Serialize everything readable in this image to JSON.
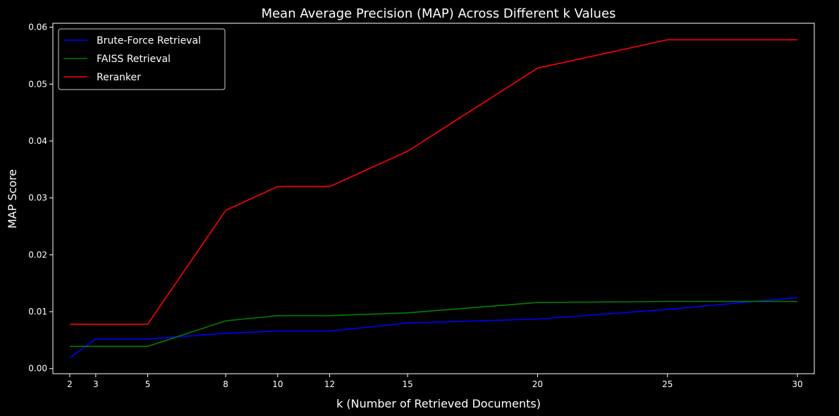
{
  "chart_data": {
    "type": "line",
    "title": "Mean Average Precision (MAP) Across Different k Values",
    "xlabel": "k (Number of Retrieved Documents)",
    "ylabel": "MAP Score",
    "x": [
      2,
      3,
      5,
      8,
      10,
      12,
      15,
      20,
      25,
      30
    ],
    "xticks": [
      "2",
      "3",
      "5",
      "8",
      "10",
      "12",
      "15",
      "20",
      "25",
      "30"
    ],
    "yticks": [
      "0.00",
      "0.01",
      "0.02",
      "0.03",
      "0.04",
      "0.05",
      "0.06"
    ],
    "xlim": [
      1.35,
      30.65
    ],
    "ylim": [
      -0.0009,
      0.0607
    ],
    "grid": false,
    "legend_position": "top-left",
    "background": "#000000",
    "foreground": "#ffffff",
    "series": [
      {
        "name": "Brute-Force Retrieval",
        "color": "#0000ff",
        "values": [
          0.0019,
          0.0052,
          0.0052,
          0.0062,
          0.0066,
          0.0066,
          0.008,
          0.0087,
          0.0104,
          0.0125
        ]
      },
      {
        "name": "FAISS Retrieval",
        "color": "#008000",
        "values": [
          0.0039,
          0.0039,
          0.0039,
          0.0084,
          0.0093,
          0.0093,
          0.0098,
          0.0116,
          0.0118,
          0.0118
        ]
      },
      {
        "name": "Reranker",
        "color": "#ff0000",
        "values": [
          0.0078,
          0.0078,
          0.0078,
          0.0278,
          0.032,
          0.032,
          0.0382,
          0.0528,
          0.0578,
          0.0578
        ]
      }
    ]
  }
}
